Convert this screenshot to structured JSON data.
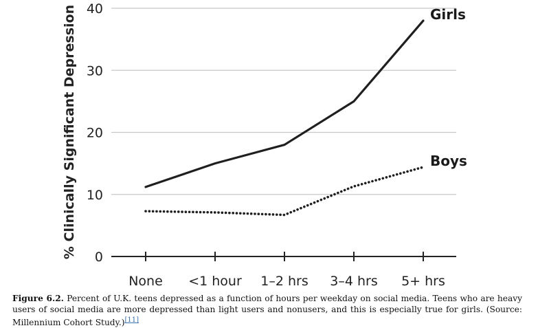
{
  "chart_data": {
    "type": "line",
    "categories": [
      "None",
      "<1 hour",
      "1–2 hrs",
      "3–4 hrs",
      "5+ hrs"
    ],
    "series": [
      {
        "name": "Girls",
        "values": [
          11.2,
          15,
          18,
          25,
          38
        ],
        "style": "solid"
      },
      {
        "name": "Boys",
        "values": [
          7.3,
          7.1,
          6.7,
          11.3,
          14.4
        ],
        "style": "dotted"
      }
    ],
    "ylabel": "% Clinically Significant Depression",
    "xlabel": "",
    "ylim": [
      0,
      40
    ],
    "yticks": [
      0,
      10,
      20,
      30,
      40
    ],
    "grid": "horizontal",
    "legend": "direct-labels-right"
  },
  "caption": {
    "label": "Figure 6.2.",
    "text": " Percent of U.K. teens depressed as a function of hours per weekday on social media. Teens who are heavy users of social media are more depressed than light users and nonusers, and this is especially true for girls. (Source: Millennium Cohort Study.)",
    "ref": "[11]"
  }
}
